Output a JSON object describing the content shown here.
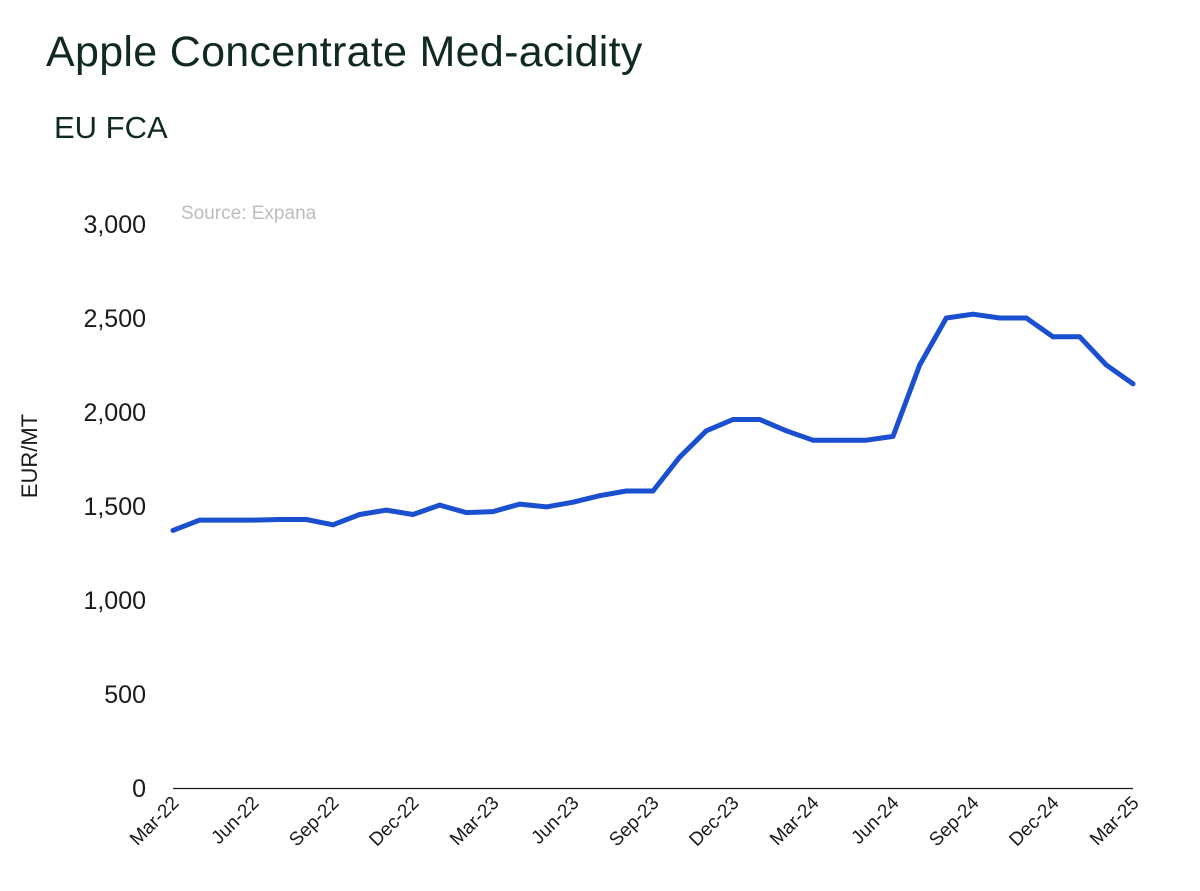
{
  "chart_data": {
    "type": "line",
    "title": "Apple Concentrate Med-acidity",
    "subtitle": "EU FCA",
    "source": "Source:  Expana",
    "xlabel": "",
    "ylabel": "EUR/MT",
    "ylim": [
      0,
      3000
    ],
    "yticks": [
      0,
      500,
      1000,
      1500,
      2000,
      2500,
      3000
    ],
    "ytick_labels": [
      "0",
      "500",
      "1,000",
      "1,500",
      "2,000",
      "2,500",
      "3,000"
    ],
    "xtick_labels": [
      "Mar-22",
      "Jun-22",
      "Sep-22",
      "Dec-22",
      "Mar-23",
      "Jun-23",
      "Sep-23",
      "Dec-23",
      "Mar-24",
      "Jun-24",
      "Sep-24",
      "Dec-24",
      "Mar-25"
    ],
    "grid": false,
    "legend": "none",
    "line_color": "#1a4fd0",
    "x": [
      "Mar-22",
      "Apr-22",
      "May-22",
      "Jun-22",
      "Jul-22",
      "Aug-22",
      "Sep-22",
      "Oct-22",
      "Nov-22",
      "Dec-22",
      "Jan-23",
      "Feb-23",
      "Mar-23",
      "Apr-23",
      "May-23",
      "Jun-23",
      "Jul-23",
      "Aug-23",
      "Sep-23",
      "Oct-23",
      "Nov-23",
      "Dec-23",
      "Jan-24",
      "Feb-24",
      "Mar-24",
      "Apr-24",
      "May-24",
      "Jun-24",
      "Jul-24",
      "Aug-24",
      "Sep-24",
      "Oct-24",
      "Nov-24",
      "Dec-24",
      "Jan-25",
      "Feb-25",
      "Mar-25"
    ],
    "series": [
      {
        "values": [
          1370,
          1425,
          1425,
          1425,
          1428,
          1428,
          1400,
          1455,
          1478,
          1455,
          1505,
          1465,
          1470,
          1510,
          1495,
          1520,
          1555,
          1580,
          1580,
          1760,
          1900,
          1960,
          1960,
          1900,
          1850,
          1850,
          1850,
          1870,
          2250,
          2500,
          2520,
          2500,
          2500,
          2400,
          2400,
          2250,
          2150
        ]
      }
    ]
  }
}
